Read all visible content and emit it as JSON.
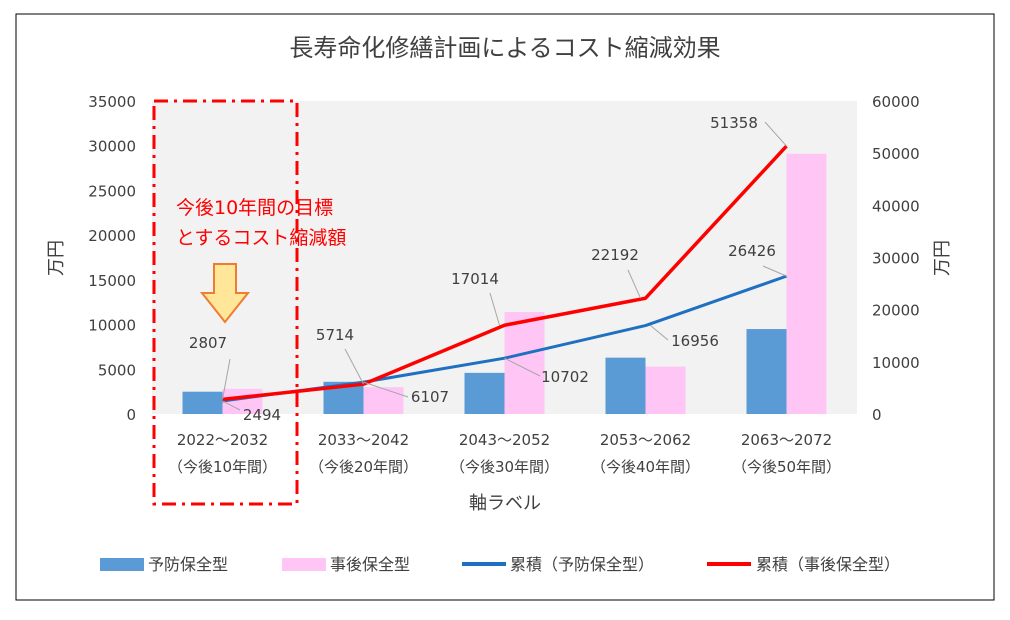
{
  "chart_data": {
    "type": "bar",
    "title": "長寿命化修繕計画によるコスト縮減効果",
    "xlabel": "軸ラベル",
    "ylabel_left": "万円",
    "ylabel_right": "万円",
    "categories": [
      [
        "2022～2032",
        "（今後10年間）"
      ],
      [
        "2033～2042",
        "（今後20年間）"
      ],
      [
        "2043～2052",
        "（今後30年間）"
      ],
      [
        "2053～2062",
        "（今後40年間）"
      ],
      [
        "2063～2072",
        "（今後50年間）"
      ]
    ],
    "y_left": {
      "min": 0,
      "max": 35000,
      "ticks": [
        "0",
        "5000",
        "10000",
        "15000",
        "20000",
        "25000",
        "30000",
        "35000"
      ]
    },
    "y_right": {
      "min": 0,
      "max": 60000,
      "ticks": [
        "0",
        "10000",
        "20000",
        "30000",
        "40000",
        "50000",
        "60000"
      ]
    },
    "series": [
      {
        "name": "予防保全型",
        "kind": "bar",
        "axis": "left",
        "color": "#5b9bd5",
        "values": [
          2494,
          3600,
          4600,
          6300,
          9500
        ]
      },
      {
        "name": "事後保全型",
        "kind": "bar",
        "axis": "left",
        "color": "#ffc6f5",
        "values": [
          2807,
          3000,
          11400,
          5300,
          29100
        ]
      },
      {
        "name": "累積（予防保全型）",
        "kind": "line",
        "axis": "right",
        "color": "#1f70c1",
        "values": [
          2494,
          6107,
          10702,
          16956,
          26426
        ]
      },
      {
        "name": "累積（事後保全型）",
        "kind": "line",
        "axis": "right",
        "color": "#ff0000",
        "values": [
          2807,
          5714,
          17014,
          22192,
          51358
        ]
      }
    ],
    "data_labels": [
      "2807",
      "2494",
      "5714",
      "6107",
      "17014",
      "10702",
      "22192",
      "16956",
      "51358",
      "26426"
    ],
    "annotation": {
      "lines": [
        "今後10年間の目標",
        "とするコスト縮減額"
      ],
      "color": "#ff0000"
    },
    "legend_position": "bottom",
    "grid": false
  }
}
